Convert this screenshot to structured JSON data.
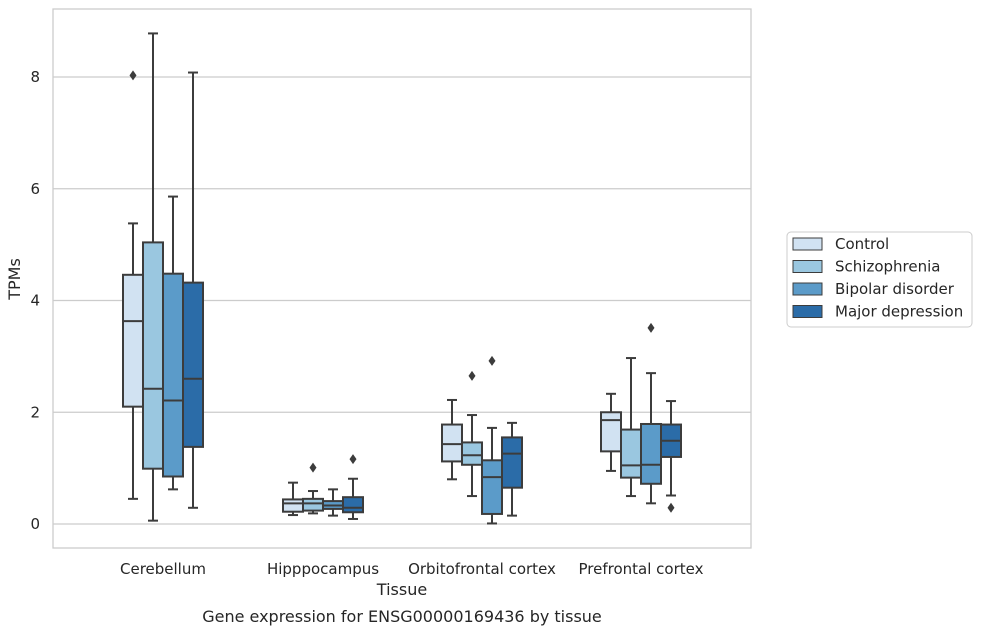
{
  "chart_data": {
    "type": "boxplot",
    "title": "Gene expression for ENSG00000169436 by tissue",
    "xlabel": "Tissue",
    "ylabel": "TPMs",
    "ylim": [
      -0.42,
      9.2
    ],
    "yticks": [
      0,
      2,
      4,
      6,
      8
    ],
    "grid": true,
    "legend_position": "right",
    "categories": [
      "Cerebellum",
      "Hipppocampus",
      "Orbitofrontal cortex",
      "Prefrontal cortex"
    ],
    "series": [
      {
        "name": "Control",
        "color": "#d1e2f2",
        "boxes": [
          {
            "whislo": 0.45,
            "q1": 2.1,
            "med": 3.63,
            "q3": 4.46,
            "whishi": 5.38,
            "fliers": [
              8.03
            ]
          },
          {
            "whislo": 0.16,
            "q1": 0.22,
            "med": 0.37,
            "q3": 0.44,
            "whishi": 0.74,
            "fliers": []
          },
          {
            "whislo": 0.8,
            "q1": 1.12,
            "med": 1.43,
            "q3": 1.78,
            "whishi": 2.22,
            "fliers": []
          },
          {
            "whislo": 0.95,
            "q1": 1.3,
            "med": 1.86,
            "q3": 2.0,
            "whishi": 2.33,
            "fliers": []
          }
        ]
      },
      {
        "name": "Schizophrenia",
        "color": "#9ac7e0",
        "boxes": [
          {
            "whislo": 0.06,
            "q1": 0.99,
            "med": 2.42,
            "q3": 5.04,
            "whishi": 8.78,
            "fliers": []
          },
          {
            "whislo": 0.19,
            "q1": 0.24,
            "med": 0.37,
            "q3": 0.45,
            "whishi": 0.59,
            "fliers": [
              1.01
            ]
          },
          {
            "whislo": 0.5,
            "q1": 1.06,
            "med": 1.23,
            "q3": 1.46,
            "whishi": 1.95,
            "fliers": [
              2.65
            ]
          },
          {
            "whislo": 0.5,
            "q1": 0.83,
            "med": 1.05,
            "q3": 1.69,
            "whishi": 2.97,
            "fliers": []
          }
        ]
      },
      {
        "name": "Bipolar disorder",
        "color": "#5b9bc9",
        "boxes": [
          {
            "whislo": 0.62,
            "q1": 0.85,
            "med": 2.21,
            "q3": 4.48,
            "whishi": 5.86,
            "fliers": []
          },
          {
            "whislo": 0.15,
            "q1": 0.27,
            "med": 0.33,
            "q3": 0.41,
            "whishi": 0.62,
            "fliers": []
          },
          {
            "whislo": 0.01,
            "q1": 0.18,
            "med": 0.84,
            "q3": 1.14,
            "whishi": 1.72,
            "fliers": [
              2.92
            ]
          },
          {
            "whislo": 0.37,
            "q1": 0.72,
            "med": 1.06,
            "q3": 1.79,
            "whishi": 2.7,
            "fliers": [
              3.51
            ]
          }
        ]
      },
      {
        "name": "Major depression",
        "color": "#2b6ca8",
        "boxes": [
          {
            "whislo": 0.29,
            "q1": 1.38,
            "med": 2.6,
            "q3": 4.32,
            "whishi": 8.08,
            "fliers": []
          },
          {
            "whislo": 0.09,
            "q1": 0.21,
            "med": 0.29,
            "q3": 0.48,
            "whishi": 0.81,
            "fliers": [
              1.16
            ]
          },
          {
            "whislo": 0.15,
            "q1": 0.65,
            "med": 1.26,
            "q3": 1.55,
            "whishi": 1.81,
            "fliers": []
          },
          {
            "whislo": 0.51,
            "q1": 1.2,
            "med": 1.49,
            "q3": 1.78,
            "whishi": 2.2,
            "fliers": [
              0.29
            ]
          }
        ]
      }
    ]
  }
}
